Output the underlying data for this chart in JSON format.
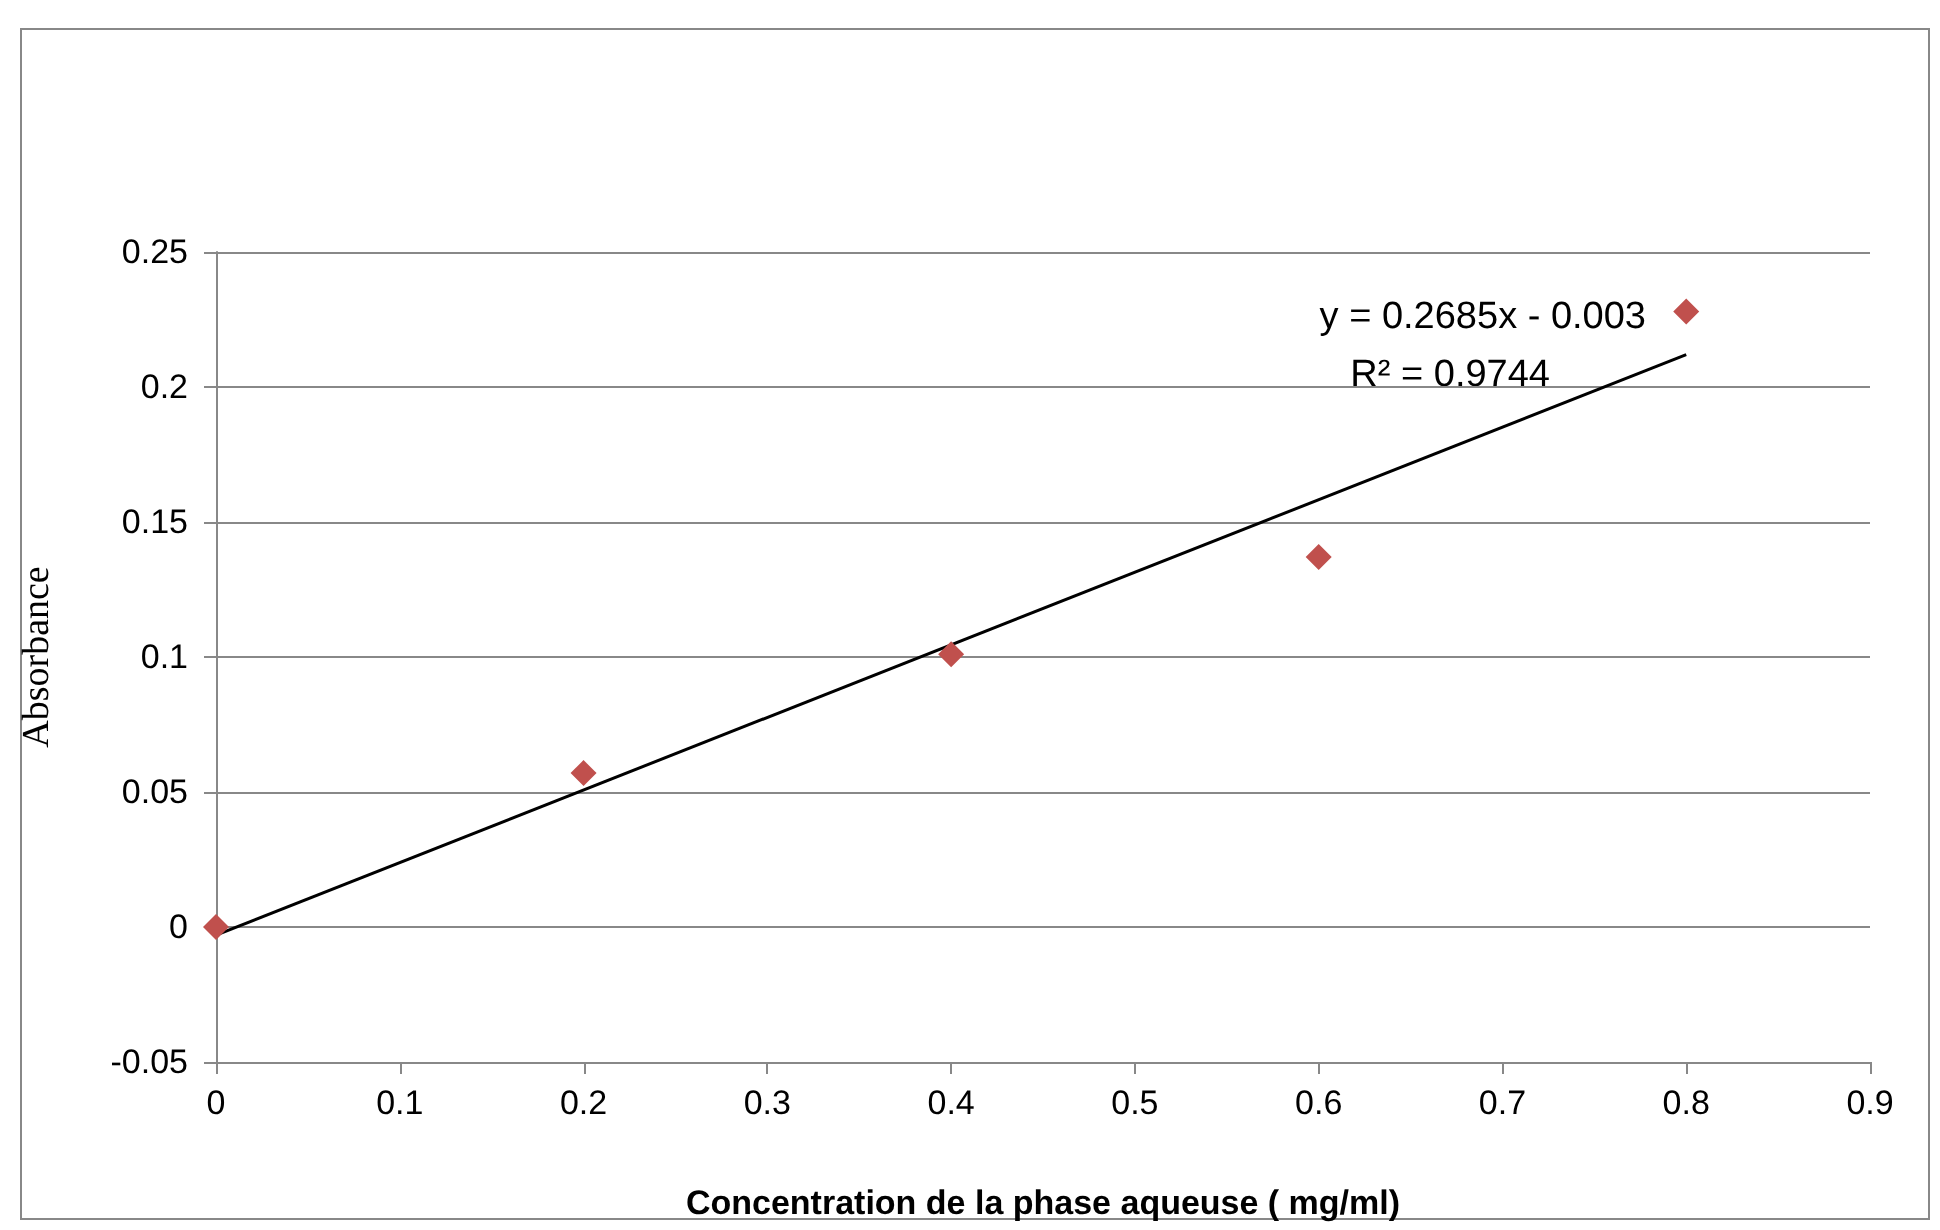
{
  "chart_data": {
    "type": "scatter",
    "xlabel": "Concentration de la phase aqueuse ( mg/ml)",
    "ylabel": "Absorbance",
    "xlim": [
      0,
      0.9
    ],
    "xticks": [
      0,
      0.1,
      0.2,
      0.3,
      0.4,
      0.5,
      0.6,
      0.7,
      0.8,
      0.9
    ],
    "ylim": [
      -0.05,
      0.25
    ],
    "yticks": [
      -0.05,
      0,
      0.05,
      0.1,
      0.15,
      0.2,
      0.25
    ],
    "grid": "y",
    "marker": "diamond",
    "series": [
      {
        "color": "#c0504d",
        "x": [
          0,
          0.2,
          0.4,
          0.6,
          0.8
        ],
        "values": [
          0,
          0.057,
          0.101,
          0.137,
          0.228
        ]
      },
      {
        "type": "line",
        "color": "#000000",
        "marker": "none",
        "x": [
          0,
          0.8
        ],
        "values": [
          -0.003,
          0.212
        ]
      }
    ],
    "annotations": [
      "y = 0.2685x - 0.003",
      "R² = 0.9744"
    ]
  }
}
